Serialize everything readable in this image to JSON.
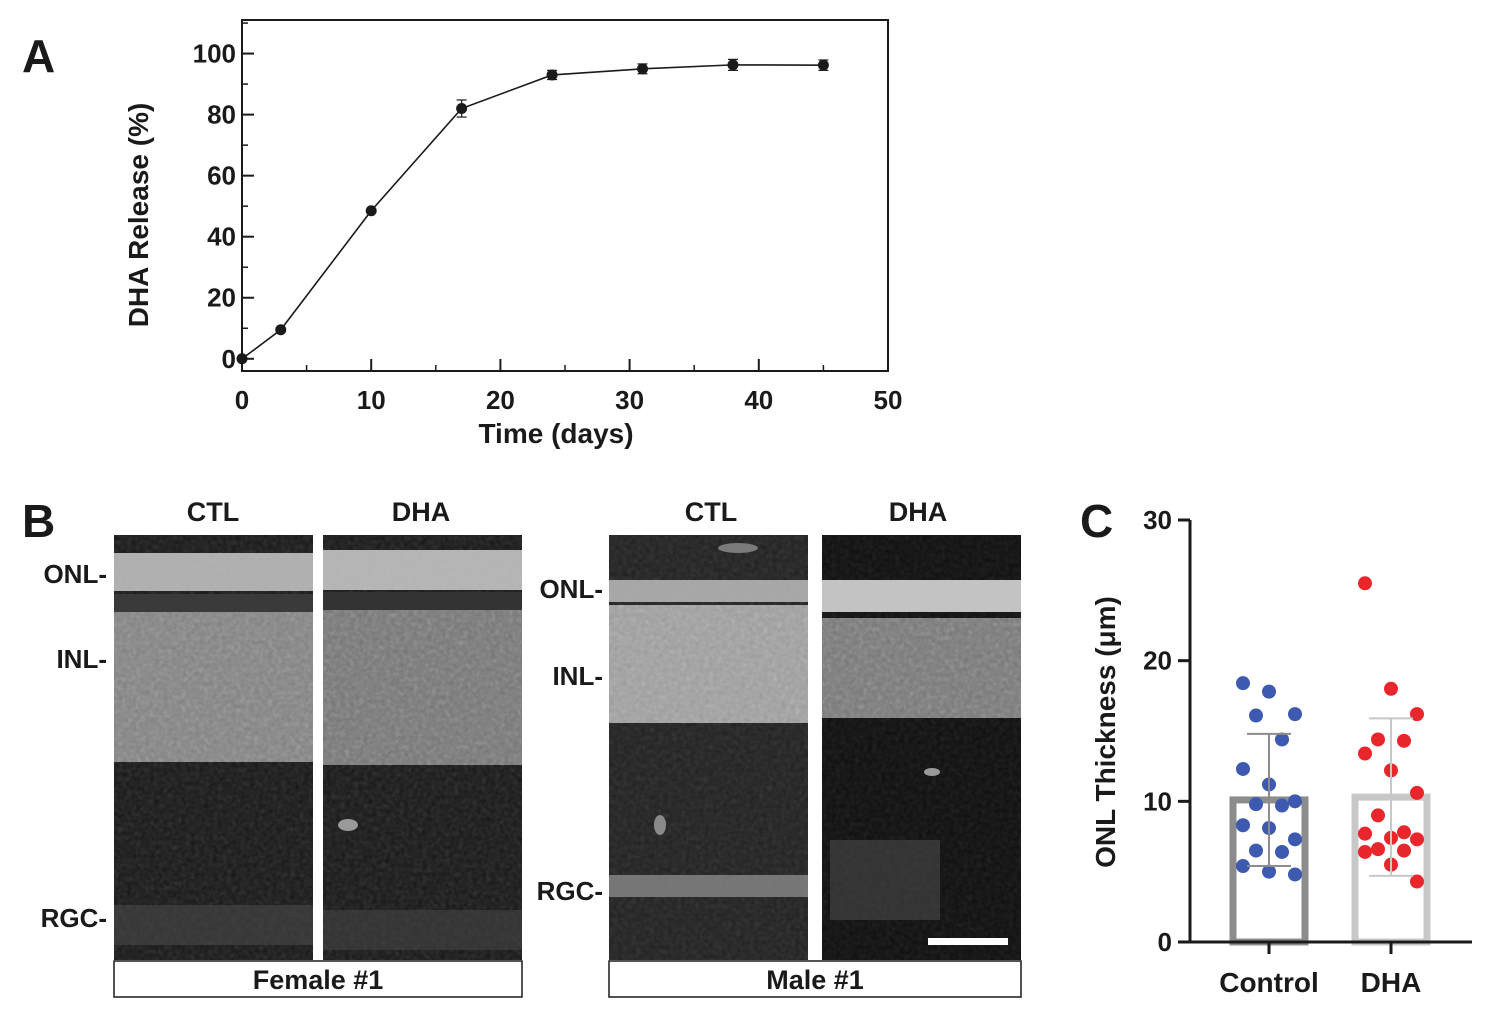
{
  "panels": {
    "a": {
      "letter": "A"
    },
    "b": {
      "letter": "B",
      "groups": [
        {
          "caption": "Female #1",
          "columns": [
            "CTL",
            "DHA"
          ],
          "layer_labels": [
            "ONL-",
            "INL-",
            "RGC-"
          ]
        },
        {
          "caption": "Male #1",
          "columns": [
            "CTL",
            "DHA"
          ],
          "layer_labels": [
            "ONL-",
            "INL-",
            "RGC-"
          ]
        }
      ]
    },
    "c": {
      "letter": "C"
    }
  },
  "chart_data": [
    {
      "type": "line",
      "title": "",
      "xlabel": "Time (days)",
      "ylabel": "DHA Release (%)",
      "xlim": [
        0,
        50
      ],
      "ylim": [
        -4,
        111
      ],
      "xticks": [
        0,
        10,
        20,
        30,
        40,
        50
      ],
      "yticks": [
        0,
        20,
        40,
        60,
        80,
        100
      ],
      "grid": false,
      "series": [
        {
          "x": [
            0,
            3,
            10,
            17,
            24,
            31,
            38,
            45
          ],
          "y": [
            0,
            9.5,
            48.5,
            82,
            93,
            95,
            96.3,
            96.2
          ],
          "error": [
            0,
            0.6,
            0.5,
            2.8,
            1.5,
            1.6,
            1.8,
            1.7
          ]
        }
      ]
    },
    {
      "type": "bar",
      "title": "",
      "xlabel": "",
      "ylabel": "ONL Thickness (μm)",
      "ylim": [
        0,
        30
      ],
      "yticks": [
        0,
        10,
        20,
        30
      ],
      "categories": [
        "Control",
        "DHA"
      ],
      "values": [
        10.1,
        10.3
      ],
      "sd": [
        4.7,
        5.6
      ],
      "colors": {
        "bars": [
          "#8c8c8c",
          "#c8c8c8"
        ],
        "points": [
          "#3d59b0",
          "#e8262b"
        ]
      },
      "points": [
        [
          18.4,
          17.8,
          16.2,
          16.1,
          14.4,
          12.3,
          11.2,
          10.0,
          9.8,
          9.7,
          8.3,
          8.1,
          7.3,
          6.5,
          6.4,
          5.4,
          5.0,
          4.8
        ],
        [
          25.5,
          18.0,
          16.2,
          14.4,
          14.3,
          13.4,
          12.2,
          10.6,
          9.0,
          7.8,
          7.7,
          7.4,
          7.3,
          6.6,
          6.5,
          6.4,
          5.5,
          4.3
        ]
      ]
    }
  ]
}
